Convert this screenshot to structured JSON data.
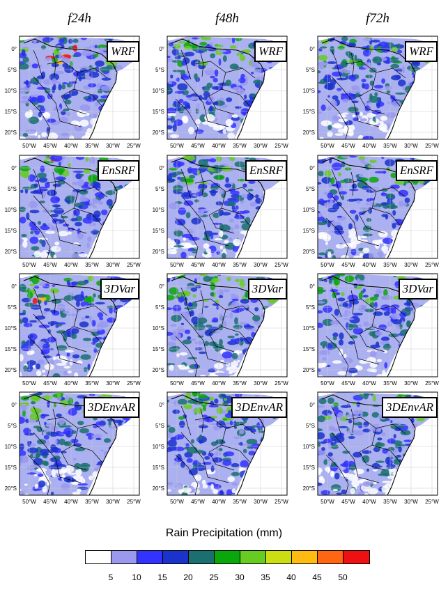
{
  "columns": [
    "f24h",
    "f48h",
    "f72h"
  ],
  "rows": [
    "WRF",
    "EnSRF",
    "3DVar",
    "3DEnvAR"
  ],
  "axes": {
    "lat_labels": [
      "0°",
      "5°S",
      "10°S",
      "15°S",
      "20°S"
    ],
    "lon_labels": [
      "50°W",
      "45°W",
      "40°W",
      "35°W",
      "30°W",
      "25°W"
    ]
  },
  "legend": {
    "title": "Rain Precipitation (mm)",
    "levels": [
      "5",
      "10",
      "15",
      "20",
      "25",
      "30",
      "35",
      "40",
      "45",
      "50"
    ],
    "colors": [
      "#ffffff",
      "#9999ee",
      "#3333ff",
      "#1a33cc",
      "#1a7070",
      "#0aa70a",
      "#66cc22",
      "#ccdd11",
      "#ffbb11",
      "#ff6611",
      "#ee1111"
    ]
  },
  "colors": {
    "background": "#ffffff",
    "land_outline": "#000000",
    "gridline": "#cccccc"
  }
}
